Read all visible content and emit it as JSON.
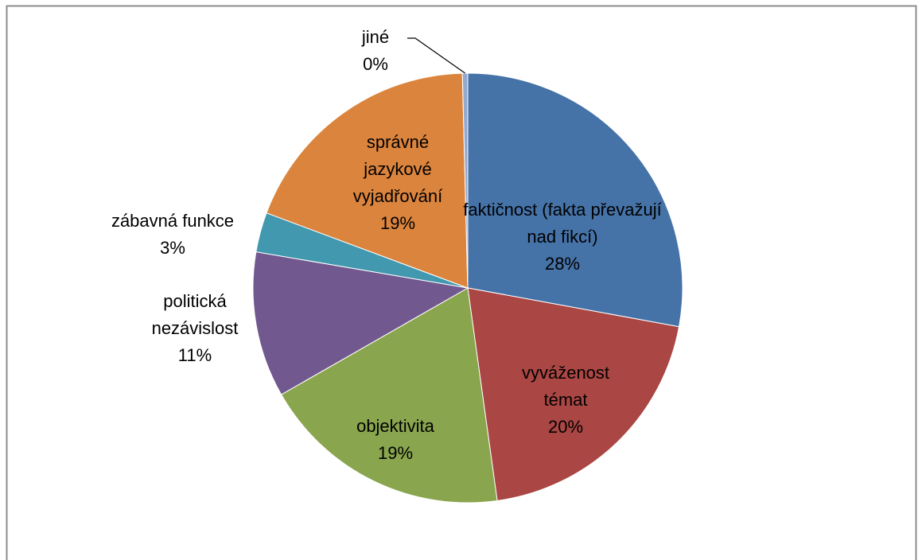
{
  "chart_data": {
    "type": "pie",
    "categories": [
      "faktičnost (fakta převažují nad fikcí)",
      "vyváženost témat",
      "objektivita",
      "politická nezávislost",
      "zábavná funkce",
      "správné jazykové vyjadřování",
      "jiné"
    ],
    "values": [
      28,
      20,
      19,
      11,
      3,
      19,
      0.4
    ],
    "value_labels": [
      "28%",
      "20%",
      "19%",
      "11%",
      "3%",
      "19%",
      "0%"
    ],
    "colors": [
      "#4572a7",
      "#aa4643",
      "#89a54e",
      "#71588f",
      "#4198af",
      "#db843d",
      "#93a9cf"
    ]
  }
}
